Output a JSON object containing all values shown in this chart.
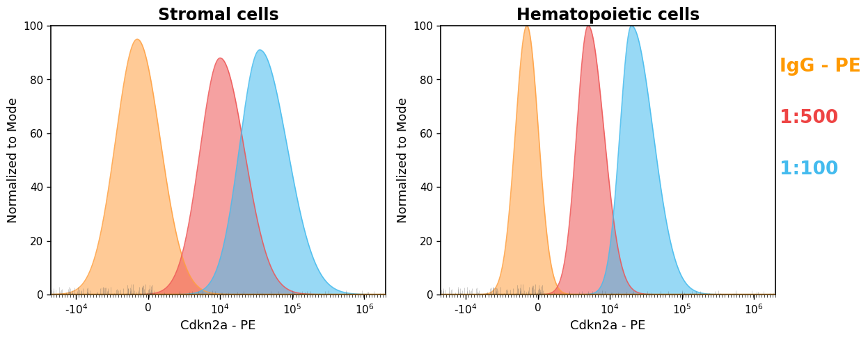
{
  "title_left": "Stromal cells",
  "title_right": "Hematopoietic cells",
  "xlabel": "Cdkn2a - PE",
  "ylabel": "Normalized to Mode",
  "ylim": [
    0,
    100
  ],
  "legend_labels": [
    "IgG - PE",
    "1:500",
    "1:100"
  ],
  "legend_colors": [
    "#FF9900",
    "#EE4444",
    "#44BBEE"
  ],
  "color_igg": "#FFA040",
  "color_500": "#EE5555",
  "color_100": "#44BBEE",
  "fill_alpha": 0.55,
  "background_color": "#FFFFFF",
  "title_fontsize": 17,
  "label_fontsize": 13,
  "tick_fontsize": 11,
  "legend_fontsize": 19,
  "stromal": {
    "igg": {
      "peak_d": -0.15,
      "peak_y": 95,
      "sigma_l": 0.3,
      "sigma_r": 0.32
    },
    "d500": {
      "peak_d": 1.0,
      "peak_y": 88,
      "sigma_l": 0.28,
      "sigma_r": 0.34
    },
    "d100": {
      "peak_d": 1.55,
      "peak_y": 91,
      "sigma_l": 0.28,
      "sigma_r": 0.38
    }
  },
  "hema": {
    "igg": {
      "peak_d": -0.15,
      "peak_y": 100,
      "sigma_l": 0.16,
      "sigma_r": 0.16
    },
    "d500": {
      "peak_d": 0.7,
      "peak_y": 100,
      "sigma_l": 0.16,
      "sigma_r": 0.22
    },
    "d100": {
      "peak_d": 1.3,
      "peak_y": 100,
      "sigma_l": 0.16,
      "sigma_r": 0.3
    }
  },
  "tick_positions_d": [
    -1.0,
    0.0,
    1.0,
    2.0,
    3.0
  ],
  "tick_labels": [
    "-10$^{4}$",
    "0",
    "10$^{4}$",
    "10$^{5}$",
    "10$^{6}$"
  ],
  "xlim": [
    -1.35,
    3.3
  ]
}
